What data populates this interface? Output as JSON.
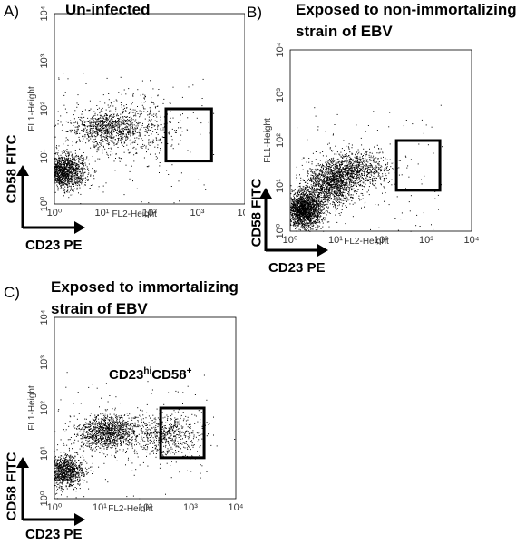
{
  "panels": [
    {
      "letter": "A)",
      "title_lines": [
        "Un-infected"
      ]
    },
    {
      "letter": "B)",
      "title_lines": [
        "Exposed to non-immortalizing",
        "strain of EBV"
      ]
    },
    {
      "letter": "C)",
      "title_lines": [
        "Exposed to immortalizing",
        "strain of EBV"
      ]
    }
  ],
  "outer_labels": {
    "y": "CD58 FITC",
    "x": "CD23 PE"
  },
  "gate_label": {
    "main": "CD23",
    "sup1": "hi",
    "mid": "CD58",
    "sup2": "+"
  },
  "chart_data": [
    {
      "type": "scatter",
      "title": "Un-infected",
      "xlabel": "FL2-Height",
      "ylabel": "FL1-Height",
      "xlim": [
        1,
        10000
      ],
      "ylim": [
        1,
        10000
      ],
      "scale": "log",
      "x_ticks": [
        "10⁰",
        "10¹",
        "10²",
        "10³",
        "10⁴"
      ],
      "y_ticks": [
        "10⁰",
        "10¹",
        "10²",
        "10³",
        "10⁴"
      ],
      "gate": {
        "x": [
          220,
          2000
        ],
        "y": [
          8,
          100
        ]
      },
      "populations": [
        {
          "center": [
            1.5,
            5
          ],
          "spread": [
            0.25,
            0.18
          ],
          "count": 1500
        },
        {
          "center": [
            12,
            40
          ],
          "spread": [
            0.35,
            0.18
          ],
          "count": 700
        },
        {
          "center": [
            40,
            40
          ],
          "spread": [
            0.6,
            0.35
          ],
          "count": 500
        }
      ],
      "axis_color": "#000000",
      "dot_color": "#000000"
    },
    {
      "type": "scatter",
      "title": "Exposed to non-immortalizing strain of EBV",
      "xlabel": "FL2-Height",
      "ylabel": "FL1-Height",
      "xlim": [
        1,
        10000
      ],
      "ylim": [
        1,
        10000
      ],
      "scale": "log",
      "x_ticks": [
        "10⁰",
        "10¹",
        "10²",
        "10³",
        "10⁴"
      ],
      "y_ticks": [
        "10⁰",
        "10¹",
        "10²",
        "10³",
        "10⁴"
      ],
      "gate": {
        "x": [
          220,
          2000
        ],
        "y": [
          8,
          100
        ]
      },
      "populations": [
        {
          "center": [
            2,
            3
          ],
          "spread": [
            0.2,
            0.2
          ],
          "count": 1800
        },
        {
          "center": [
            8,
            12
          ],
          "spread": [
            0.3,
            0.25
          ],
          "count": 1400
        },
        {
          "center": [
            30,
            25
          ],
          "spread": [
            0.35,
            0.2
          ],
          "count": 700
        }
      ],
      "axis_color": "#000000",
      "dot_color": "#000000"
    },
    {
      "type": "scatter",
      "title": "Exposed to immortalizing strain of EBV",
      "xlabel": "FL2-Height",
      "ylabel": "FL1-Height",
      "xlim": [
        1,
        10000
      ],
      "ylim": [
        1,
        10000
      ],
      "scale": "log",
      "x_ticks": [
        "10⁰",
        "10¹",
        "10²",
        "10³",
        "10⁴"
      ],
      "y_ticks": [
        "10⁰",
        "10¹",
        "10²",
        "10³",
        "10⁴"
      ],
      "gate": {
        "x": [
          220,
          2000
        ],
        "y": [
          8,
          100
        ]
      },
      "populations": [
        {
          "center": [
            1.6,
            4
          ],
          "spread": [
            0.22,
            0.18
          ],
          "count": 1000
        },
        {
          "center": [
            15,
            30
          ],
          "spread": [
            0.35,
            0.2
          ],
          "count": 1100
        },
        {
          "center": [
            300,
            25
          ],
          "spread": [
            0.4,
            0.25
          ],
          "count": 600
        }
      ],
      "axis_color": "#000000",
      "dot_color": "#000000"
    }
  ]
}
